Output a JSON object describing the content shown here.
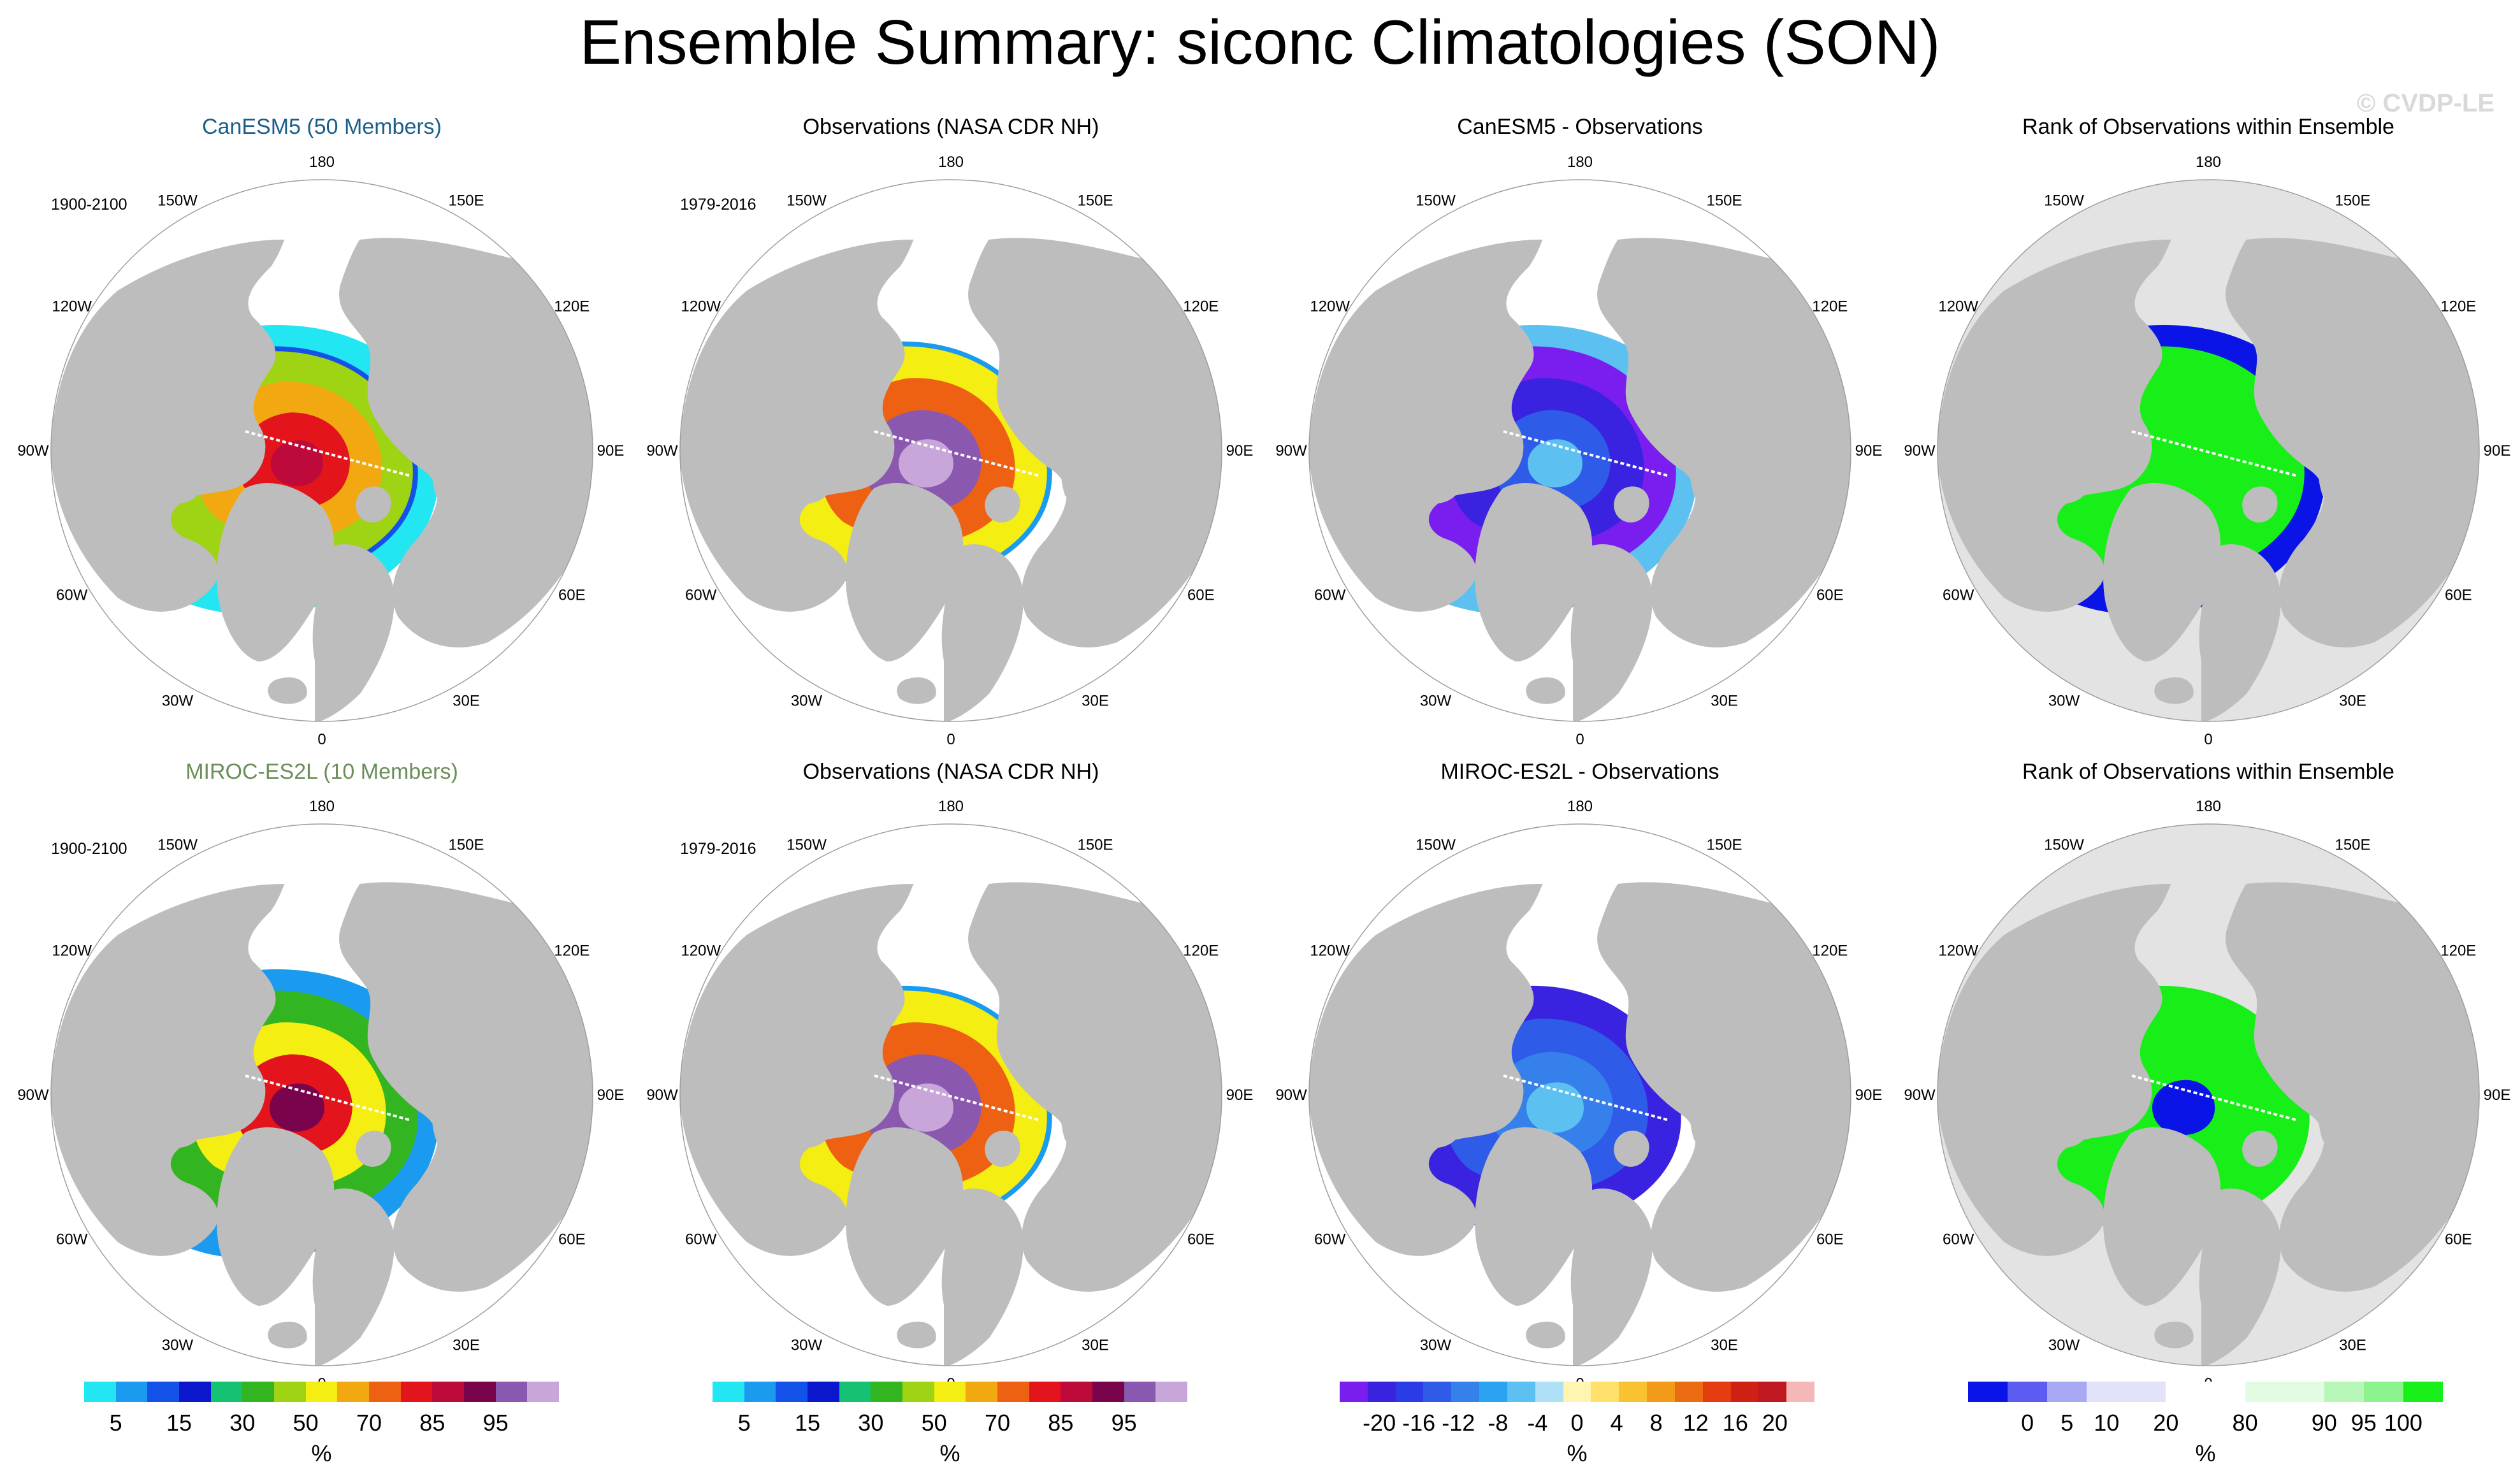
{
  "title": "Ensemble Summary: siconc Climatologies (SON)",
  "watermark": "© CVDP-LE",
  "rows": [
    {
      "panels": [
        {
          "title": "CanESM5 (50 Members)",
          "title_color": "#1a5e8a",
          "period": "1900-2100"
        },
        {
          "title": "Observations (NASA CDR NH)",
          "title_color": "#000000",
          "period": "1979-2016"
        },
        {
          "title": "CanESM5 - Observations",
          "title_color": "#000000",
          "period": ""
        },
        {
          "title": "Rank of Observations within Ensemble",
          "title_color": "#000000",
          "period": ""
        }
      ]
    },
    {
      "panels": [
        {
          "title": "MIROC-ES2L (10 Members)",
          "title_color": "#6b8e5a",
          "period": "1900-2100"
        },
        {
          "title": "Observations (NASA CDR NH)",
          "title_color": "#000000",
          "period": "1979-2016"
        },
        {
          "title": "MIROC-ES2L - Observations",
          "title_color": "#000000",
          "period": ""
        },
        {
          "title": "Rank of Observations within Ensemble",
          "title_color": "#000000",
          "period": ""
        }
      ]
    }
  ],
  "longitude_labels": [
    "180",
    "150E",
    "120E",
    "90E",
    "60E",
    "30E",
    "0",
    "30W",
    "60W",
    "90W",
    "120W",
    "150W"
  ],
  "colors": {
    "land": "#bdbdbd",
    "ocean": "#ffffff",
    "rank_background": "#e3e3e3"
  },
  "colorbars": [
    {
      "name": "siconc",
      "colors": [
        "#22e6f2",
        "#1a9bf0",
        "#1451e8",
        "#0b17cc",
        "#15c172",
        "#33b521",
        "#9fd414",
        "#f4ee12",
        "#f2a911",
        "#ee6112",
        "#e3141b",
        "#bd0a3a",
        "#7a044b",
        "#8b58b0",
        "#c9a6d9"
      ],
      "ticks": [
        "5",
        "15",
        "30",
        "50",
        "70",
        "85",
        "95"
      ],
      "unit": "%"
    },
    {
      "name": "siconc-obs",
      "colors": [
        "#22e6f2",
        "#1a9bf0",
        "#1451e8",
        "#0b17cc",
        "#15c172",
        "#33b521",
        "#9fd414",
        "#f4ee12",
        "#f2a911",
        "#ee6112",
        "#e3141b",
        "#bd0a3a",
        "#7a044b",
        "#8b58b0",
        "#c9a6d9"
      ],
      "ticks": [
        "5",
        "15",
        "30",
        "50",
        "70",
        "85",
        "95"
      ],
      "unit": "%"
    },
    {
      "name": "difference",
      "colors": [
        "#7a1ef0",
        "#3a23e0",
        "#2a3ce6",
        "#2e5ce8",
        "#3680ec",
        "#2aa4f0",
        "#5cc0f0",
        "#aee0f6",
        "#fff4b0",
        "#ffe06a",
        "#f8c230",
        "#f29a1a",
        "#ec6c12",
        "#e43c10",
        "#d01f14",
        "#c01820",
        "#f4b8b8"
      ],
      "ticks": [
        "-20",
        "-16",
        "-12",
        "-8",
        "-4",
        "0",
        "4",
        "8",
        "12",
        "16",
        "20"
      ],
      "unit": "%"
    },
    {
      "name": "rank",
      "colors": [
        "#0a14e6",
        "#5c5cf0",
        "#a8a8f4",
        "#e2e2fa",
        "#e2e2fa",
        "#ffffff",
        "#ffffff",
        "#e2fbe2",
        "#e2fbe2",
        "#b8f6b8",
        "#8cf28c",
        "#18ee18"
      ],
      "ticks": [
        "0",
        "5",
        "10",
        "20",
        "80",
        "90",
        "95",
        "100"
      ],
      "unit": "%"
    }
  ]
}
